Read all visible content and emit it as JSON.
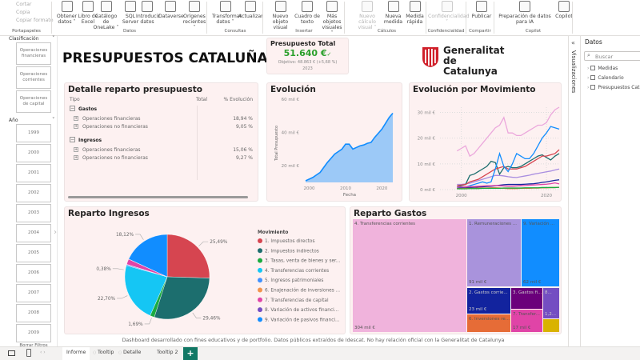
{
  "ribbon": {
    "clipboard": {
      "cut": "Cortar",
      "copy": "Copia",
      "format_painter": "Copiar formato",
      "group": "Portapapeles"
    },
    "groups": [
      {
        "label": "Datos",
        "buttons": [
          {
            "label": "Obtener datos ˅"
          },
          {
            "label": "Libro de Excel"
          },
          {
            "label": "Catálogo de OneLake ˅"
          },
          {
            "label": "SQL Server"
          },
          {
            "label": "Introducir datos"
          },
          {
            "label": "Dataverse"
          },
          {
            "label": "Orígenes recientes ˅"
          }
        ]
      },
      {
        "label": "Consultas",
        "buttons": [
          {
            "label": "Transformar datos ˅"
          },
          {
            "label": "Actualizar"
          }
        ]
      },
      {
        "label": "Insertar",
        "buttons": [
          {
            "label": "Nuevo objeto visual"
          },
          {
            "label": "Cuadro de texto"
          },
          {
            "label": "Más objetos visuales ˅"
          }
        ]
      },
      {
        "label": "Cálculos",
        "buttons": [
          {
            "label": "Nuevo cálculo visual ˅",
            "disabled": true
          },
          {
            "label": "Nueva medida"
          },
          {
            "label": "Medida rápida"
          }
        ]
      },
      {
        "label": "Confidencialidad",
        "buttons": [
          {
            "label": "Confidencialidad ˅",
            "disabled": true
          }
        ]
      },
      {
        "label": "Compartir",
        "buttons": [
          {
            "label": "Publicar"
          }
        ]
      },
      {
        "label": "Copilot",
        "buttons": [
          {
            "label": "Preparación de datos para IA"
          },
          {
            "label": "Copilot"
          }
        ]
      }
    ]
  },
  "slicers": {
    "clasificacion": {
      "title": "Clasificación",
      "items": [
        "Operaciones financieras",
        "Operaciones corrientes",
        "Operaciones de capital"
      ]
    },
    "anio": {
      "title": "Año",
      "items": [
        "1999",
        "2000",
        "2001",
        "2002",
        "2003",
        "2004",
        "2005",
        "2006",
        "2007",
        "2008",
        "2009"
      ]
    },
    "clear": "Borrar Filtros"
  },
  "header": {
    "title": "PRESUPUESTOS CATALUÑA 2023",
    "logo_text": [
      "Generalitat",
      "de Catalunya"
    ]
  },
  "kpi": {
    "title": "Presupuesto Total",
    "value": "51.640 €",
    "check": "✓",
    "target": "Objetivo: 48.863 € (+5,68 %)",
    "year": "2023",
    "value_color": "#2ca02c"
  },
  "table": {
    "title": "Detalle reparto presupuesto",
    "columns": [
      "Tipo",
      "Total",
      "% Evolución"
    ],
    "groups": [
      {
        "name": "Gastos",
        "rows": [
          {
            "label": "Operaciones financieras",
            "pct": "18,94 %"
          },
          {
            "label": "Operaciones no financieras",
            "pct": "9,05 %"
          }
        ]
      },
      {
        "name": "Ingresos",
        "rows": [
          {
            "label": "Operaciones financieras",
            "pct": "15,06 %"
          },
          {
            "label": "Operaciones no financieras",
            "pct": "9,27 %"
          }
        ]
      }
    ]
  },
  "chart_data": [
    {
      "id": "evolucion",
      "type": "area",
      "title": "Evolución",
      "xlabel": "Fecha",
      "ylabel": "Total Presupuesto",
      "ylim": [
        10,
        60
      ],
      "xlim": [
        1999,
        2023
      ],
      "yticks": [
        {
          "v": 20,
          "label": "20 mil €"
        },
        {
          "v": 40,
          "label": "40 mil €"
        },
        {
          "v": 60,
          "label": "60 mil €"
        }
      ],
      "xticks": [
        2000,
        2010,
        2020
      ],
      "color": "#118dff",
      "fill": "#9cc9f7",
      "x": [
        1999,
        2000,
        2001,
        2002,
        2003,
        2004,
        2005,
        2006,
        2007,
        2008,
        2009,
        2010,
        2011,
        2012,
        2013,
        2014,
        2015,
        2016,
        2017,
        2018,
        2019,
        2020,
        2021,
        2022,
        2023
      ],
      "values": [
        11,
        12,
        13,
        14.5,
        16,
        19,
        22,
        24.5,
        27,
        28.5,
        30,
        33,
        33,
        30,
        31,
        32,
        32.5,
        33.5,
        34,
        37,
        39.5,
        42,
        45.5,
        49,
        51.6
      ]
    },
    {
      "id": "movimiento",
      "type": "line",
      "title": "Evolución por Movimiento",
      "ylim": [
        0,
        32
      ],
      "xlim": [
        1995,
        2023
      ],
      "grid": true,
      "yticks": [
        {
          "v": 0,
          "label": "0 mil €"
        },
        {
          "v": 10,
          "label": "10 mil €"
        },
        {
          "v": 20,
          "label": "20 mil €"
        },
        {
          "v": 30,
          "label": "30 mil €"
        }
      ],
      "xticks": [
        2000,
        2020
      ],
      "x_start": 1999,
      "series": [
        {
          "color": "#eba7dc",
          "values": [
            15,
            16,
            17,
            13,
            14,
            16,
            18,
            20,
            22,
            24,
            25,
            28,
            22,
            22,
            21,
            21,
            22,
            23,
            24,
            25,
            25,
            26,
            29,
            31,
            32
          ]
        },
        {
          "color": "#a98ee0",
          "values": [
            2,
            2,
            2.2,
            2.5,
            3,
            3.5,
            4,
            4.5,
            5,
            5.5,
            5.5,
            5.3,
            5,
            4.8,
            4.7,
            5,
            5.3,
            5.6,
            6,
            6.3,
            6.6,
            6.9,
            7.2,
            7.6,
            8
          ]
        },
        {
          "color": "#1c6e6e",
          "values": [
            1,
            1.5,
            2,
            5.5,
            6,
            7,
            8,
            9,
            11,
            10.5,
            6,
            8.5,
            9,
            8.5,
            8.5,
            9,
            10,
            11,
            12,
            13,
            13.5,
            12.5,
            11.5,
            13,
            14
          ]
        },
        {
          "color": "#d64550",
          "values": [
            1.5,
            1.8,
            2,
            3,
            3.5,
            4,
            5,
            6,
            7,
            8,
            8.5,
            9,
            8,
            8,
            8,
            8.5,
            9,
            10,
            11,
            12,
            13,
            13,
            13.5,
            14,
            15.5
          ]
        },
        {
          "color": "#118dff",
          "values": [
            1,
            1,
            1,
            1.5,
            2,
            2.5,
            3,
            2.5,
            3,
            8,
            14,
            9,
            7,
            10,
            14,
            13,
            12,
            12,
            14,
            17,
            20,
            22,
            24.5,
            24,
            23.5
          ]
        },
        {
          "color": "#12239e",
          "values": [
            0.5,
            0.6,
            0.7,
            0.8,
            0.9,
            1,
            1.1,
            1.2,
            1.3,
            1.5,
            1.7,
            1.9,
            2,
            2,
            2,
            2,
            2.1,
            2.2,
            2.3,
            2.5,
            2.8,
            3,
            3.3,
            3.6,
            3.8
          ]
        },
        {
          "color": "#e044a7",
          "values": [
            1,
            1,
            1.1,
            1.2,
            1.2,
            1.3,
            1.4,
            1.5,
            1.5,
            1.6,
            1.5,
            1.4,
            1.3,
            1.3,
            1.4,
            1.5,
            1.6,
            1.7,
            1.8,
            1.9,
            2,
            2.1,
            2.3,
            2.6,
            2.2
          ]
        },
        {
          "color": "#e66c37",
          "values": [
            0.4,
            0.4,
            0.5,
            0.5,
            0.5,
            0.6,
            0.6,
            0.6,
            0.7,
            0.7,
            0.6,
            0.5,
            0.4,
            0.4,
            0.4,
            0.5,
            0.5,
            0.5,
            0.6,
            0.6,
            0.7,
            0.7,
            0.8,
            0.8,
            0.9
          ]
        },
        {
          "color": "#1aab40",
          "values": [
            0.3,
            0.3,
            0.3,
            0.4,
            0.4,
            0.4,
            0.5,
            0.5,
            0.5,
            0.5,
            0.5,
            0.6,
            0.6,
            0.6,
            0.6,
            0.6,
            0.7,
            0.7,
            0.7,
            0.7,
            0.8,
            0.8,
            0.8,
            0.8,
            0.9
          ]
        }
      ]
    },
    {
      "id": "ingresos",
      "type": "pie",
      "title": "Reparto Ingresos",
      "legend_title": "Movimiento",
      "legend_position": "right",
      "slices": [
        {
          "name": "1. Impuestos directos",
          "value": 25.49,
          "label": "25,49%",
          "color": "#d64550"
        },
        {
          "name": "2. Impuestos indirectos",
          "value": 29.46,
          "label": "29,46%",
          "color": "#1c6e6e"
        },
        {
          "name": "3. Tasas, venta de bienes y ser...",
          "value": 1.69,
          "label": "1,69%",
          "color": "#1aab40"
        },
        {
          "name": "4. Transferencias corrientes",
          "value": 22.7,
          "label": "22,70%",
          "color": "#15c6f4"
        },
        {
          "name": "5. Ingresos patrimoniales",
          "value": 0.38,
          "label": "0,38%",
          "color": "#4092ff"
        },
        {
          "name": "6. Enajenación de inversiones ...",
          "value": 0.1,
          "label": "",
          "color": "#f2944d"
        },
        {
          "name": "7. Transferencias de capital",
          "value": 2.06,
          "label": "",
          "color": "#e044a7"
        },
        {
          "name": "8. Variación de activos financi...",
          "value": 0.05,
          "label": "",
          "color": "#744ec2"
        },
        {
          "name": "9. Variación de pasivos financi...",
          "value": 18.12,
          "label": "18,12%",
          "color": "#118dff"
        }
      ]
    },
    {
      "id": "gastos",
      "type": "treemap",
      "title": "Reparto Gastos",
      "items": [
        {
          "label": "4. Transferencias corrientes",
          "value": "304 mil €",
          "color": "#f0b3dc"
        },
        {
          "label": "1. Remuneraciones ...",
          "value": "91 mil €",
          "color": "#a993dc"
        },
        {
          "label": "9. Variación ...",
          "value": "62 mil €",
          "color": "#118dff"
        },
        {
          "label": "2. Gastos corrie...",
          "value": "23 mil €",
          "color": "#12239e"
        },
        {
          "label": "6. Inversiones re...",
          "value": "",
          "color": "#e66c37"
        },
        {
          "label": "3. Gastos fi...",
          "value": "",
          "color": "#6b007b"
        },
        {
          "label": "7. Transfer...",
          "value": "17 mil €",
          "color": "#e044a7"
        },
        {
          "label": "8...",
          "value": "1,2...",
          "color": "#744ec2"
        },
        {
          "label": "",
          "value": "",
          "color": "#d9b300"
        }
      ]
    }
  ],
  "footer": "Dashboard desarrollado con fines educativos y de portfolio. Datos públicos extraídos de Idescat. No hay relación oficial con la Generalitat de Catalunya",
  "right_panel": {
    "visualizaciones": "Visualizaciones",
    "datos_title": "Datos",
    "search_placeholder": "Buscar",
    "tables": [
      "Medidas",
      "Calendario",
      "Presupuestos Catal"
    ]
  },
  "tabs": {
    "items": [
      "Informe",
      "Tooltip",
      "Detalle",
      "Tooltip 2"
    ],
    "add": "+",
    "add_color": "#117865"
  }
}
